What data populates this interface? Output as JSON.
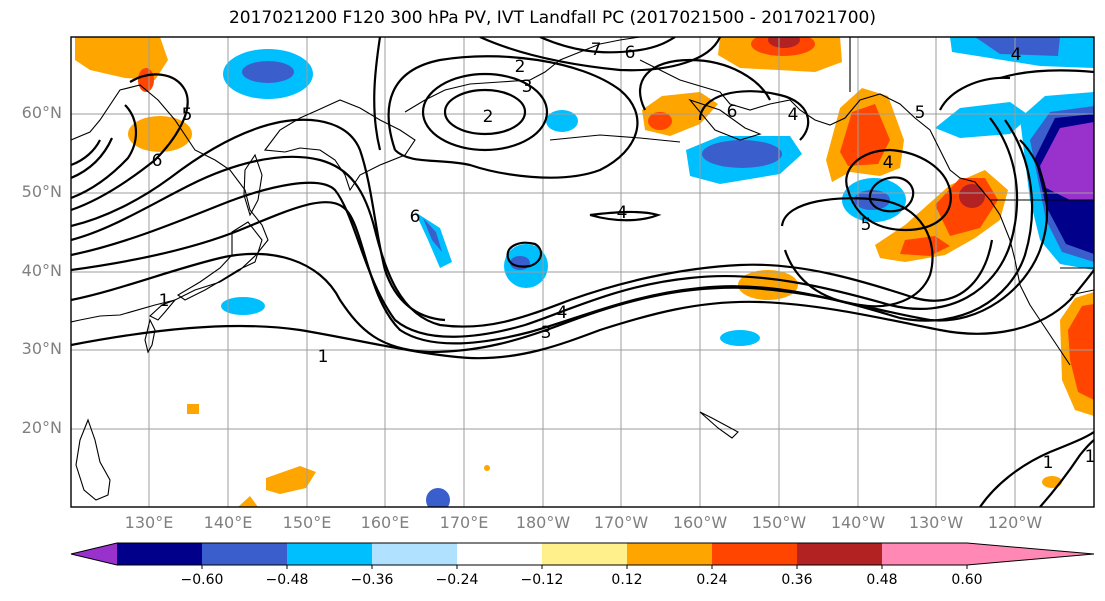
{
  "title": "2017021200 F120 300 hPa PV, IVT Landfall PC (2017021500 - 2017021700)",
  "lat_ticks": [
    "60°N",
    "50°N",
    "40°N",
    "30°N",
    "20°N"
  ],
  "lon_ticks": [
    "130°E",
    "140°E",
    "150°E",
    "160°E",
    "170°E",
    "180°W",
    "170°W",
    "160°W",
    "150°W",
    "140°W",
    "130°W",
    "120°W"
  ],
  "colorbar": {
    "labels": [
      "−0.60",
      "−0.48",
      "−0.36",
      "−0.24",
      "−0.12",
      "0.12",
      "0.24",
      "0.36",
      "0.48",
      "0.60"
    ],
    "colors": [
      "#9932cc",
      "#00008b",
      "#3a5fcd",
      "#00bfff",
      "#b0e2ff",
      "#ffffff",
      "#fff08c",
      "#ffa500",
      "#ff4500",
      "#b22222",
      "#ff89b4"
    ]
  },
  "pv_contour_labels": [
    "1",
    "1",
    "1",
    "2",
    "3",
    "4",
    "4",
    "4",
    "4",
    "5",
    "5",
    "5",
    "6",
    "6",
    "6",
    "6",
    "7",
    "1",
    "2",
    "3",
    "4"
  ]
}
